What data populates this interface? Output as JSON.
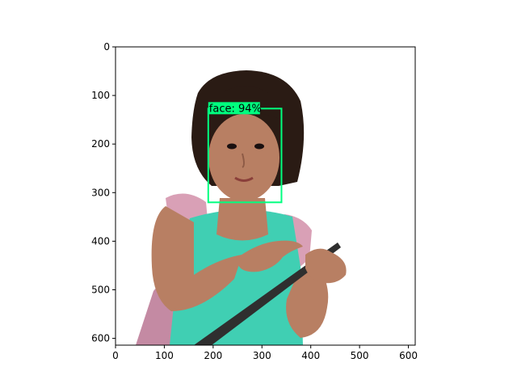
{
  "figure": {
    "x_axis": {
      "ticks": [
        0,
        100,
        200,
        300,
        400,
        500,
        600
      ],
      "range": [
        0,
        614
      ]
    },
    "y_axis": {
      "ticks": [
        0,
        100,
        200,
        300,
        400,
        500,
        600
      ],
      "range": [
        0,
        614
      ],
      "inverted": true
    },
    "image": {
      "subject": "child-with-tablet",
      "background": "#ffffff",
      "hair_color": "#2a1b14",
      "skin_color": "#b87f63",
      "shirt_color": "#40cfb3",
      "tablet_color": "#2f2f2f"
    },
    "detections": [
      {
        "label": "face: 94%",
        "box_color": "#00ff7f",
        "x0": 190,
        "y0": 127,
        "x1": 340,
        "y1": 320
      }
    ]
  }
}
